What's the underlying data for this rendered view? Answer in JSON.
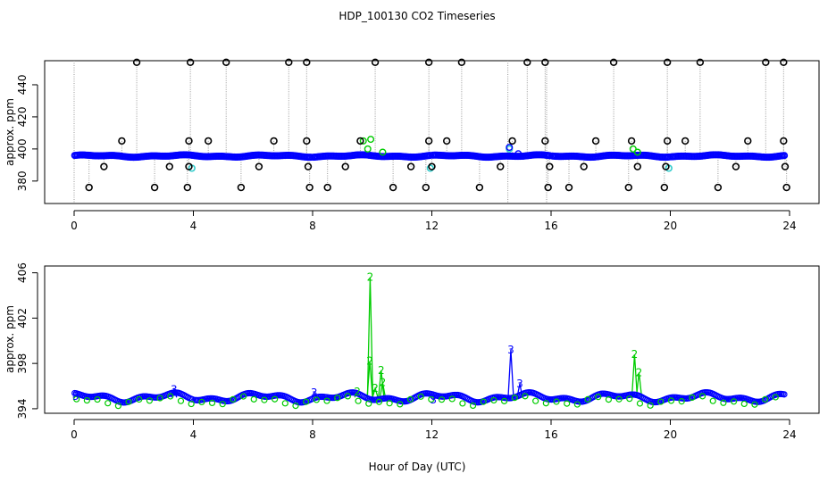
{
  "figure": {
    "title": "HDP_100130  CO2 Timeseries",
    "xlabel": "Hour of Day (UTC)"
  },
  "colors": {
    "series_main": "#0000ff",
    "series_alt": "#00cc00",
    "series_flag": "#33cccc",
    "outlier": "#000000",
    "drop_lines": "#999999"
  },
  "chart_data": [
    {
      "type": "scatter",
      "ylabel": "approx. ppm",
      "xlim": [
        0,
        24
      ],
      "ylim": [
        366,
        455
      ],
      "xticks": [
        0,
        4,
        8,
        12,
        16,
        20,
        24
      ],
      "yticks": [
        380,
        400,
        420,
        440
      ],
      "outliers_low": [
        0.5,
        2.7,
        3.8,
        5.6,
        7.9,
        8.5,
        10.7,
        11.8,
        13.6,
        15.9,
        16.6,
        18.6,
        19.8,
        21.6,
        23.9
      ],
      "outliers_mid_low": [
        1.0,
        3.2,
        3.85,
        6.2,
        7.85,
        9.1,
        11.3,
        12.0,
        14.3,
        15.95,
        17.1,
        18.9,
        19.85,
        22.2,
        23.85
      ],
      "outliers_mid_high": [
        1.6,
        3.85,
        4.5,
        6.7,
        7.8,
        9.6,
        11.9,
        12.5,
        14.7,
        15.8,
        17.5,
        18.7,
        19.9,
        20.5,
        22.6,
        23.8
      ],
      "outliers_high": [
        2.1,
        3.9,
        5.1,
        7.2,
        7.8,
        10.1,
        11.9,
        13.0,
        15.2,
        15.8,
        18.1,
        19.9,
        21.0,
        23.2,
        23.8
      ],
      "outlier_values": {
        "low": 376,
        "mid_low": 389,
        "mid_high": 405,
        "high": 454
      },
      "gaps": [
        [
          3.98,
          4.02
        ],
        [
          7.98,
          8.02
        ],
        [
          11.98,
          12.02
        ],
        [
          15.98,
          16.02
        ],
        [
          19.98,
          20.02
        ]
      ],
      "alt_points": [
        {
          "x": 9.85,
          "y": 400
        },
        {
          "x": 9.95,
          "y": 406
        },
        {
          "x": 10.35,
          "y": 398
        },
        {
          "x": 18.75,
          "y": 400
        },
        {
          "x": 18.9,
          "y": 398
        },
        {
          "x": 9.7,
          "y": 405
        }
      ],
      "flag_points": [
        {
          "x": 3.95,
          "y": 388
        },
        {
          "x": 11.95,
          "y": 388
        },
        {
          "x": 19.95,
          "y": 388
        },
        {
          "x": 14.6,
          "y": 400
        }
      ],
      "spike_points": [
        {
          "x": 14.6,
          "y": 401
        },
        {
          "x": 14.9,
          "y": 397
        }
      ]
    },
    {
      "type": "line",
      "ylabel": "approx. ppm",
      "xlim": [
        0,
        24
      ],
      "ylim": [
        393.6,
        406.6
      ],
      "xticks": [
        0,
        4,
        8,
        12,
        16,
        20,
        24
      ],
      "yticks": [
        394,
        398,
        402,
        406
      ],
      "gaps": [
        [
          3.98,
          4.02
        ],
        [
          7.98,
          8.02
        ],
        [
          11.98,
          12.02
        ],
        [
          15.98,
          16.02
        ],
        [
          19.98,
          20.02
        ]
      ],
      "series": [
        {
          "label": "2",
          "spikes": [
            {
              "x": 9.93,
              "y": 405.6
            },
            {
              "x": 9.92,
              "y": 398.2
            },
            {
              "x": 10.1,
              "y": 395.8
            },
            {
              "x": 10.3,
              "y": 397.4
            },
            {
              "x": 10.35,
              "y": 396.3
            },
            {
              "x": 18.8,
              "y": 398.8
            },
            {
              "x": 18.95,
              "y": 397.2
            },
            {
              "x": 9.5,
              "y": 395.5
            }
          ]
        },
        {
          "label": "3",
          "spikes": [
            {
              "x": 14.65,
              "y": 399.2
            },
            {
              "x": 14.95,
              "y": 396.2
            },
            {
              "x": 3.35,
              "y": 395.7
            },
            {
              "x": 0.05,
              "y": 395.1
            },
            {
              "x": 8.05,
              "y": 395.4
            },
            {
              "x": 12.05,
              "y": 394.8
            }
          ]
        }
      ]
    }
  ]
}
